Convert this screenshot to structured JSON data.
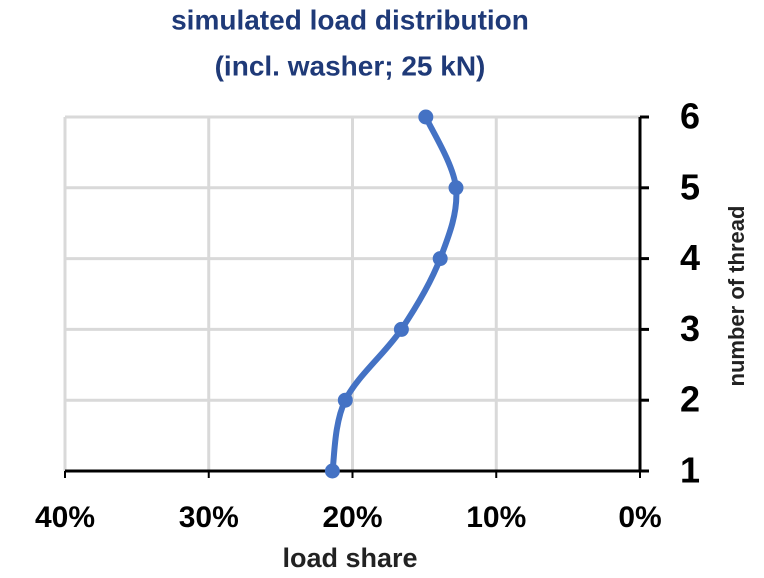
{
  "chart_data": {
    "type": "line",
    "title": "simulated load distribution",
    "subtitle": "(incl. washer; 25 kN)",
    "x_label": "load share",
    "y_label": "number of thread",
    "x": [
      21.4,
      20.5,
      16.6,
      13.9,
      12.8,
      14.9
    ],
    "y": [
      1,
      2,
      3,
      4,
      5,
      6
    ],
    "color": "#4472c4",
    "title_color": "#1f3a78",
    "xlim": [
      40,
      0
    ],
    "xticks": [
      {
        "value": 40,
        "label": "40%"
      },
      {
        "value": 30,
        "label": "30%"
      },
      {
        "value": 20,
        "label": "20%"
      },
      {
        "value": 10,
        "label": "10%"
      },
      {
        "value": 0,
        "label": "0%"
      }
    ],
    "ylim": [
      1,
      6
    ],
    "yticks": [
      1,
      2,
      3,
      4,
      5,
      6
    ],
    "y_axis_side": "right",
    "smooth": true,
    "grid": true
  }
}
